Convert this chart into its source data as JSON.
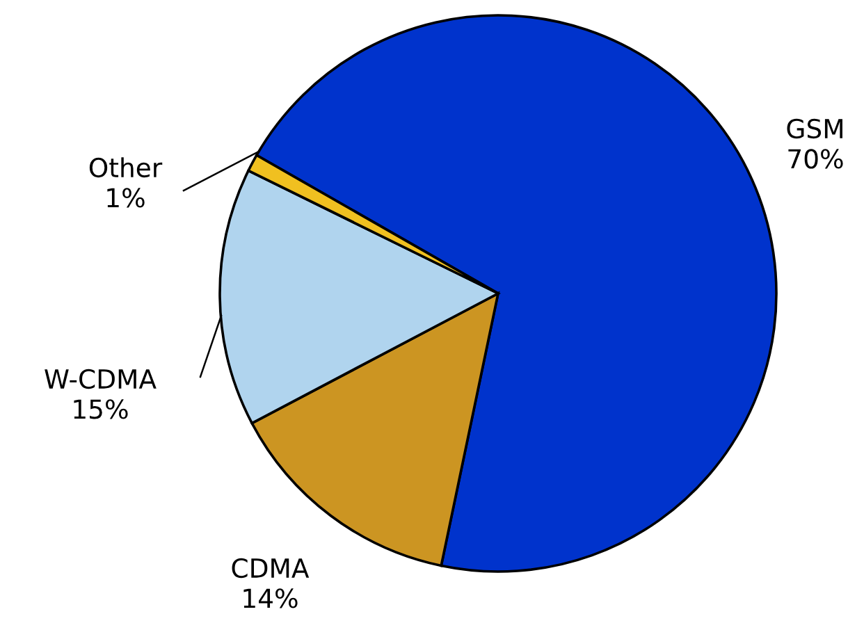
{
  "chart_data": {
    "type": "pie",
    "categories": [
      "GSM",
      "CDMA",
      "W-CDMA",
      "Other"
    ],
    "values": [
      70,
      14,
      15,
      1
    ],
    "value_labels": [
      "70%",
      "14%",
      "15%",
      "1%"
    ],
    "colors": [
      "#0033cc",
      "#cc9522",
      "#b0d4ee",
      "#f0c020"
    ]
  }
}
